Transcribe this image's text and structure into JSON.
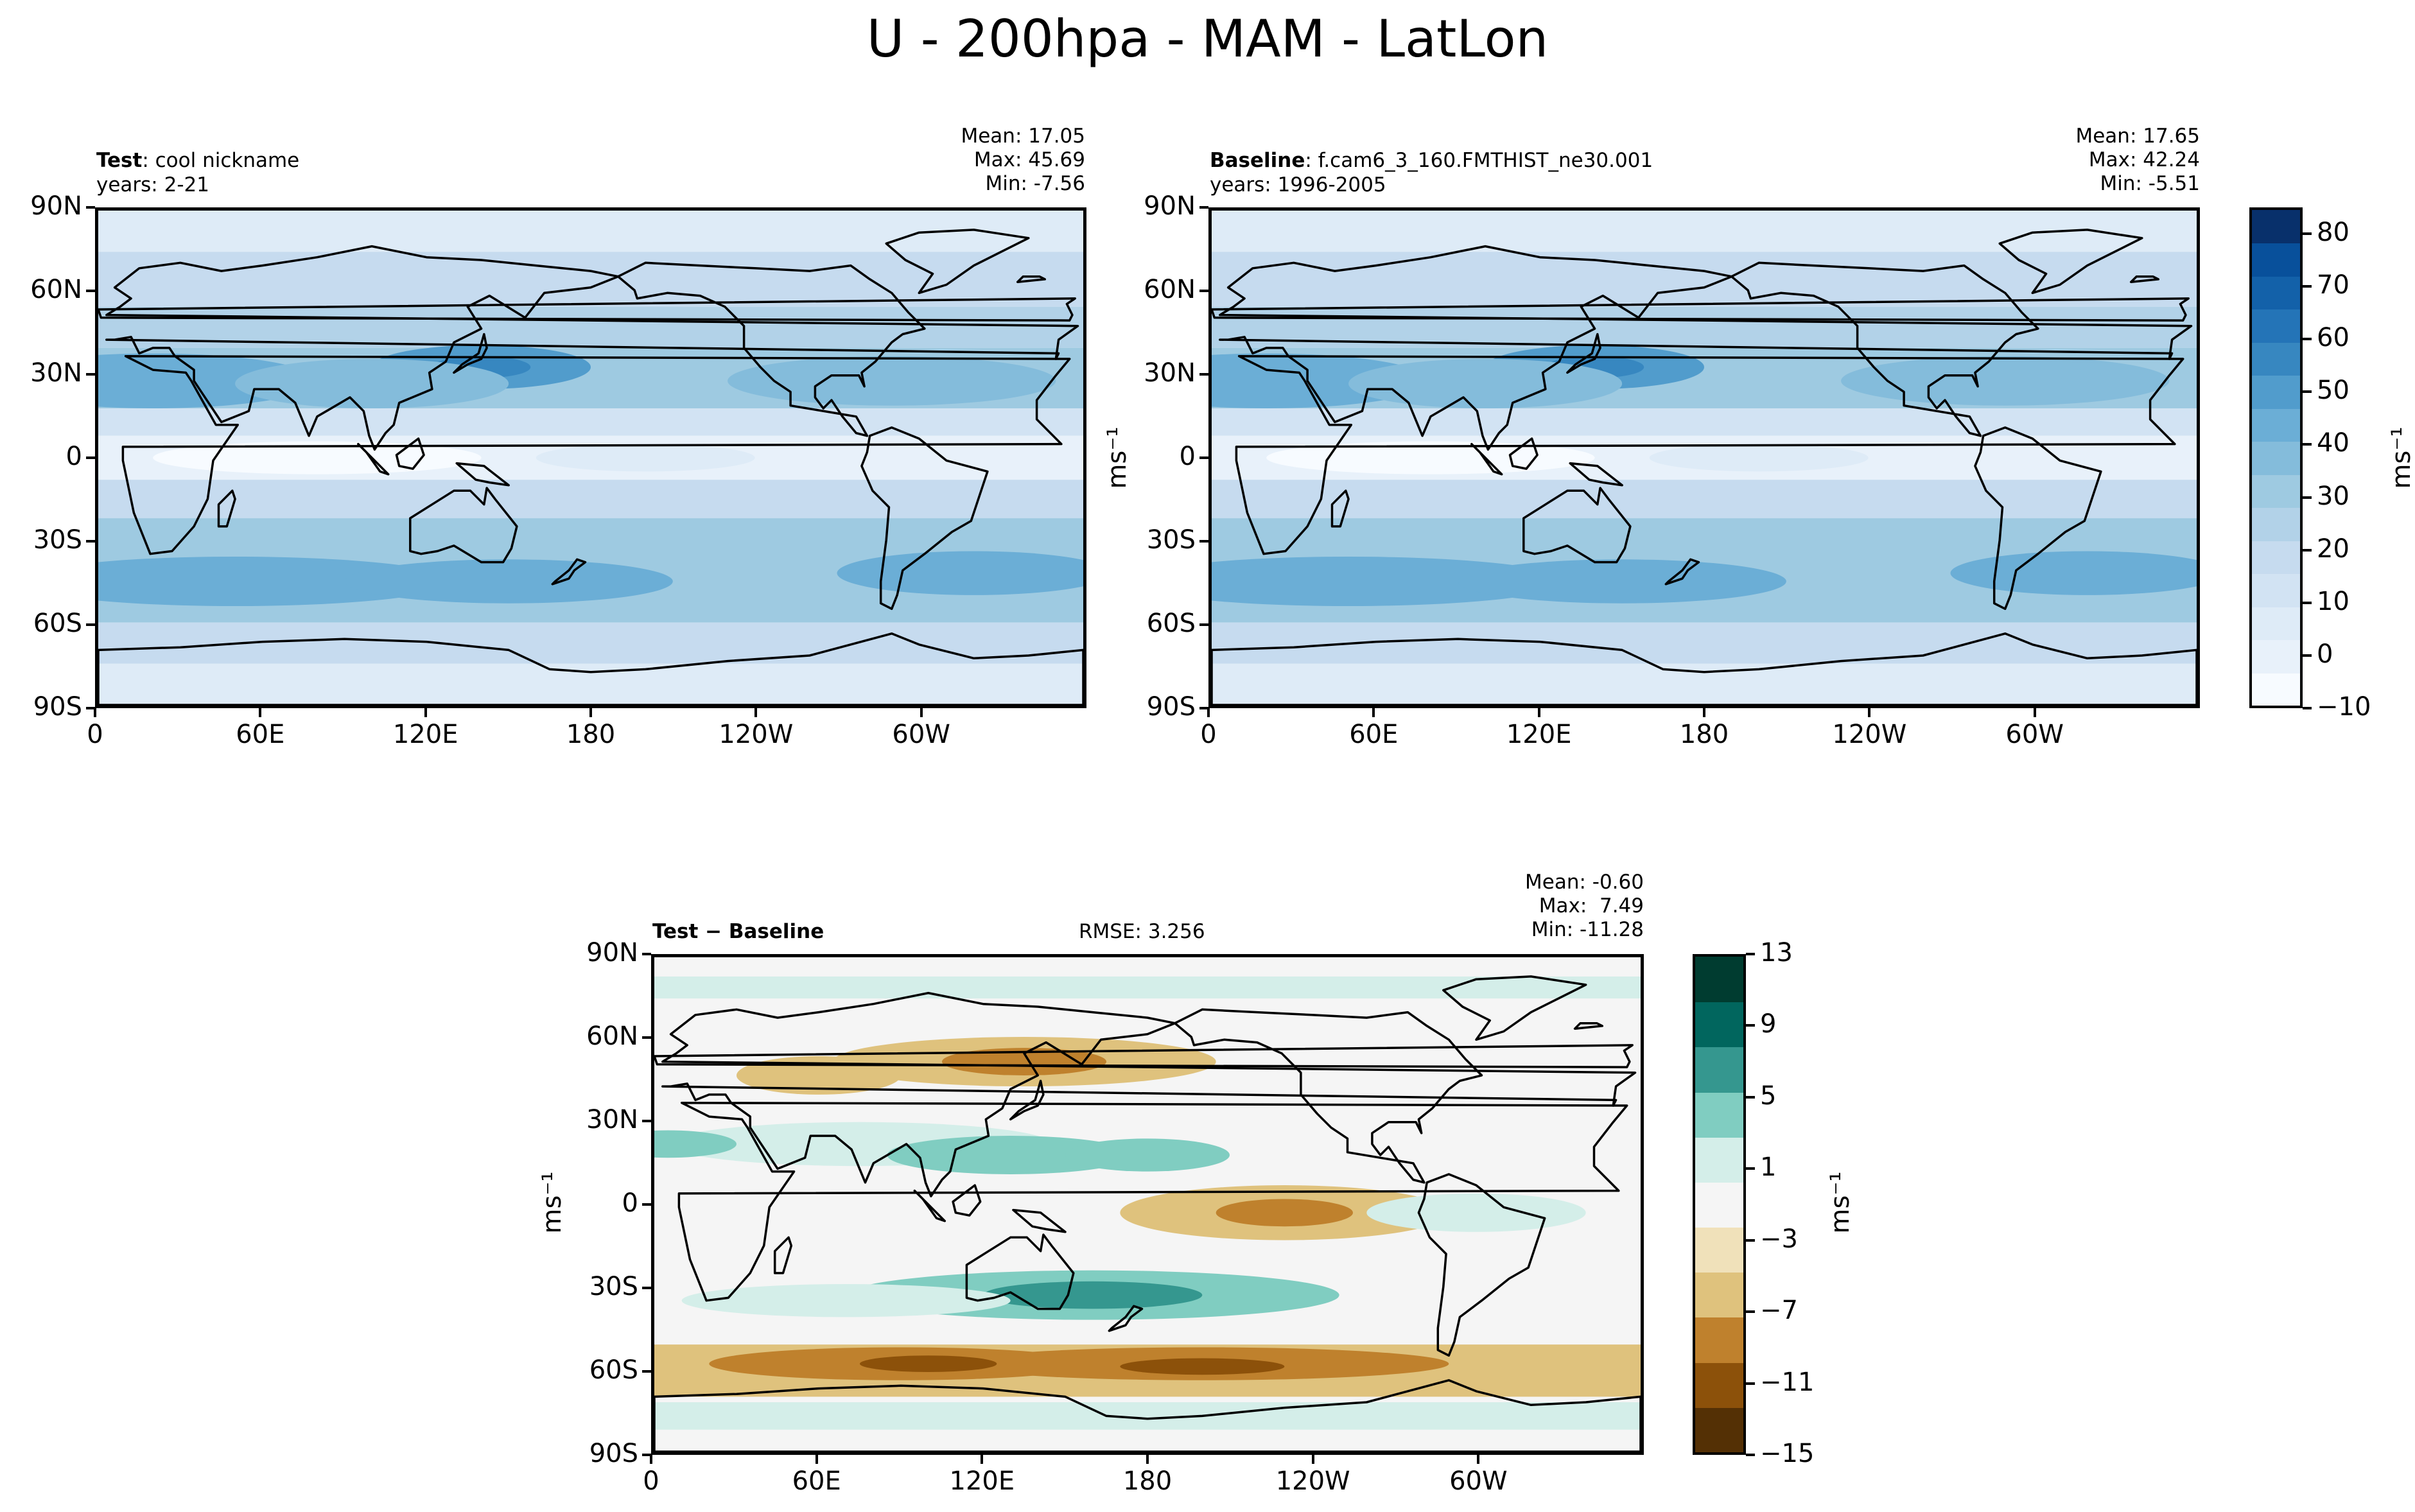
{
  "title": "U - 200hpa - MAM - LatLon",
  "colors": {
    "blues": [
      "#f7fbff",
      "#e8f1fa",
      "#deebf7",
      "#d2e3f3",
      "#c6dbef",
      "#b2d2e8",
      "#9ecae1",
      "#84bcdb",
      "#6baed6",
      "#519ccc",
      "#3787c0",
      "#2474b7",
      "#1361a9",
      "#08509b",
      "#08306b"
    ],
    "brbg": [
      "#543005",
      "#8c510a",
      "#bf812d",
      "#dfc27d",
      "#f0e1ba",
      "#f5f5f5",
      "#d4eee9",
      "#80cdc1",
      "#35978f",
      "#01665e",
      "#003c30"
    ]
  },
  "chart_data": [
    {
      "type": "heatmap",
      "name": "test-panel",
      "label_bold": "Test",
      "label_rest": ": cool nickname",
      "years": "years: 2-21",
      "stats": {
        "mean": "Mean: 17.05",
        "max": "Max: 45.69",
        "min": "Min: -7.56"
      },
      "x_ticks": [
        "0",
        "60E",
        "120E",
        "180",
        "120W",
        "60W"
      ],
      "y_ticks": [
        "90N",
        "60N",
        "30N",
        "0",
        "30S",
        "60S",
        "90S"
      ],
      "xlim": [
        0,
        360
      ],
      "ylim": [
        -90,
        90
      ],
      "field": "zonal wind 200hPa, jets near 30N and 45S"
    },
    {
      "type": "heatmap",
      "name": "baseline-panel",
      "label_bold": "Baseline",
      "label_rest": ": f.cam6_3_160.FMTHIST_ne30.001",
      "years": "years: 1996-2005",
      "stats": {
        "mean": "Mean: 17.65",
        "max": "Max: 42.24",
        "min": "Min: -5.51"
      },
      "x_ticks": [
        "0",
        "60E",
        "120E",
        "180",
        "120W",
        "60W"
      ],
      "y_ticks": [
        "90N",
        "60N",
        "30N",
        "0",
        "30S",
        "60S",
        "90S"
      ],
      "xlim": [
        0,
        360
      ],
      "ylim": [
        -90,
        90
      ]
    },
    {
      "type": "heatmap",
      "name": "difference-panel",
      "label_bold": "Test − Baseline",
      "rmse": "RMSE: 3.256",
      "stats": {
        "mean": "Mean: -0.60",
        "max": "Max:  7.49",
        "min": "Min: -11.28"
      },
      "x_ticks": [
        "0",
        "60E",
        "120E",
        "180",
        "120W",
        "60W"
      ],
      "y_ticks": [
        "90N",
        "60N",
        "30N",
        "0",
        "30S",
        "60S",
        "90S"
      ],
      "xlim": [
        0,
        360
      ],
      "ylim": [
        -90,
        90
      ]
    }
  ],
  "colorbar_top": {
    "unit": "ms⁻¹",
    "ticks": [
      "80",
      "70",
      "60",
      "50",
      "40",
      "30",
      "20",
      "10",
      "0",
      "−10"
    ],
    "range": [
      -10,
      85
    ]
  },
  "colorbar_diff": {
    "unit": "ms⁻¹",
    "ticks": [
      "13",
      "9",
      "5",
      "1",
      "−3",
      "−7",
      "−11",
      "−15"
    ],
    "range": [
      -15,
      13
    ]
  },
  "ylabel_unit": "ms⁻¹"
}
